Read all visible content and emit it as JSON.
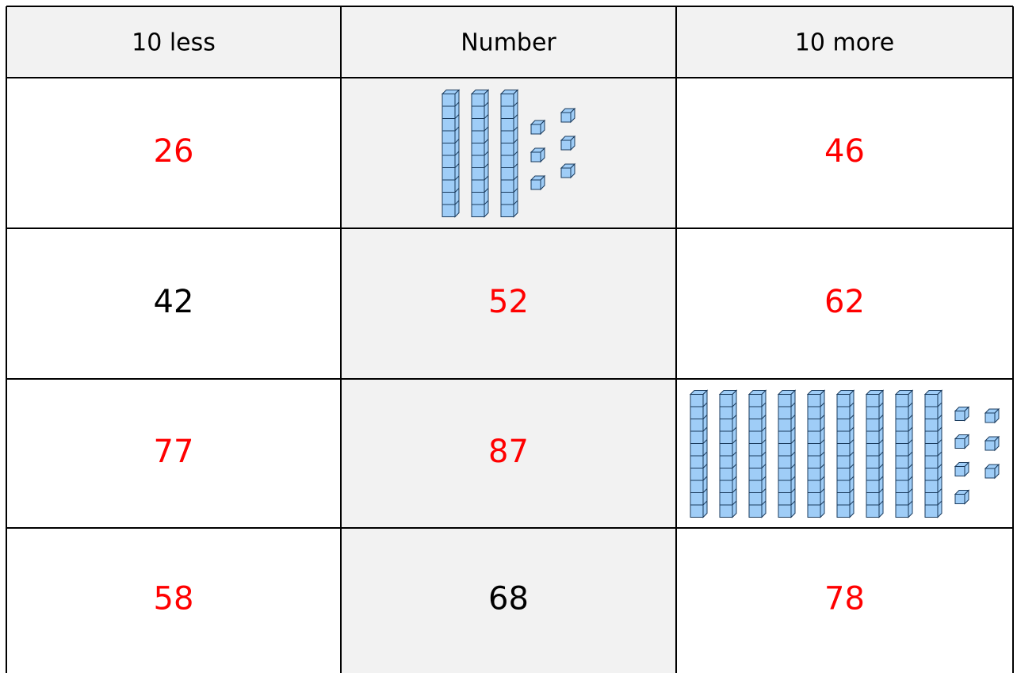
{
  "table": {
    "header": [
      "10 less",
      "Number",
      "10 more"
    ],
    "rows": [
      [
        {
          "text": "26",
          "color": "#ff0000"
        },
        {
          "blocks": {
            "tens": 3,
            "ones": 6
          }
        },
        {
          "text": "46",
          "color": "#ff0000"
        }
      ],
      [
        {
          "text": "42",
          "color": "#000000"
        },
        {
          "text": "52",
          "color": "#ff0000"
        },
        {
          "text": "62",
          "color": "#ff0000"
        }
      ],
      [
        {
          "text": "77",
          "color": "#ff0000"
        },
        {
          "text": "87",
          "color": "#ff0000"
        },
        {
          "blocks": {
            "tens": 9,
            "ones": 7
          }
        }
      ],
      [
        {
          "text": "58",
          "color": "#ff0000"
        },
        {
          "text": "68",
          "color": "#000000"
        },
        {
          "text": "78",
          "color": "#ff0000"
        }
      ]
    ]
  }
}
